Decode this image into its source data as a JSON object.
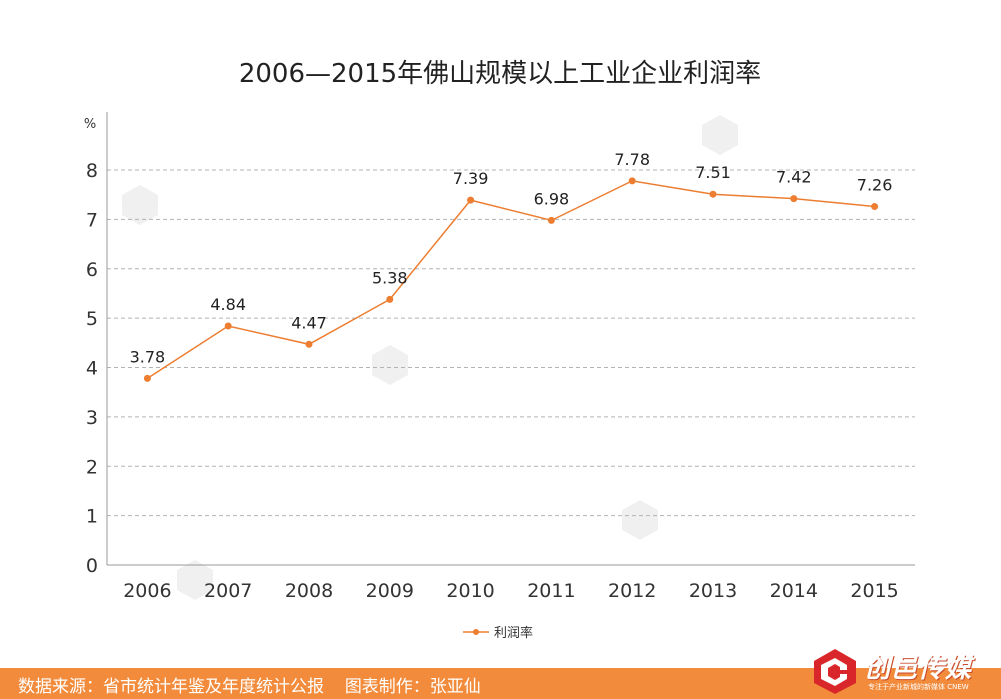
{
  "chart_data": {
    "type": "line",
    "title": "2006—2015年佛山规模以上工业企业利润率",
    "ylabel": "%",
    "xlabel": "",
    "categories": [
      "2006",
      "2007",
      "2008",
      "2009",
      "2010",
      "2011",
      "2012",
      "2013",
      "2014",
      "2015"
    ],
    "series": [
      {
        "name": "利润率",
        "values": [
          3.78,
          4.84,
          4.47,
          5.38,
          7.39,
          6.98,
          7.78,
          7.51,
          7.42,
          7.26
        ],
        "color": "#ed7d31"
      }
    ],
    "data_labels": [
      "3.78",
      "4.84",
      "4.47",
      "5.38",
      "7.39",
      "6.98",
      "7.78",
      "7.51",
      "7.42",
      "7.26"
    ],
    "yticks": [
      "0",
      "1",
      "2",
      "3",
      "4",
      "5",
      "6",
      "7",
      "8"
    ],
    "ylim": [
      0,
      8
    ],
    "grid": true,
    "legend": "bottom-center"
  },
  "footer": {
    "source_label": "数据来源：省市统计年鉴及年度统计公报",
    "author_label": "图表制作：张亚仙"
  },
  "logo": {
    "wordmark": "创邑传媒",
    "slogan": "专注于产业新城的新媒体 CNEW"
  },
  "colors": {
    "accent": "#ed7d31",
    "footer_bg": "#f28c3c",
    "logo_red": "#d9262b"
  }
}
